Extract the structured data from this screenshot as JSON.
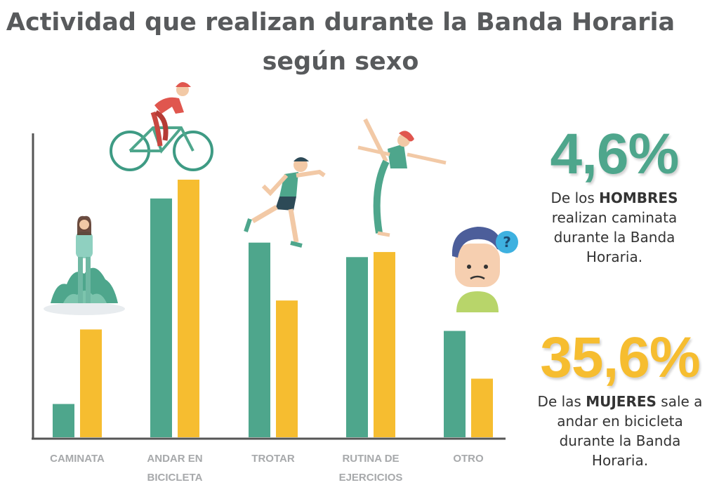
{
  "title": "Actividad que realizan durante la Banda Horaria según sexo",
  "colors": {
    "men": "#4ea68c",
    "women": "#f6bd30",
    "title": "#585a5c",
    "axis": "#555555"
  },
  "icons": [
    "woman-hiking-icon",
    "cyclist-icon",
    "runner-icon",
    "yoga-woman-icon",
    "confused-man-icon"
  ],
  "stats": {
    "men": {
      "value": "4,6%",
      "pre": "De los ",
      "bold": "HOMBRES",
      "post": " realizan caminata durante la Banda Horaria."
    },
    "women": {
      "value": "35,6%",
      "pre": "De las ",
      "bold": "MUJERES",
      "post": " sale a andar en bicicleta durante la Banda Horaria."
    }
  },
  "chart_data": {
    "type": "bar",
    "title": "Actividad que realizan durante la Banda Horaria según sexo",
    "categories": [
      "CAMINATA",
      "ANDAR EN BICICLETA",
      "TROTAR",
      "RUTINA DE EJERCICIOS",
      "OTRO"
    ],
    "category_lines": [
      [
        "CAMINATA"
      ],
      [
        "ANDAR EN",
        "BICICLETA"
      ],
      [
        "TROTAR"
      ],
      [
        "RUTINA DE",
        "EJERCICIOS"
      ],
      [
        "OTRO"
      ]
    ],
    "series": [
      {
        "color": "#4ea68c",
        "values": [
          4.6,
          33.0,
          26.9,
          24.9,
          14.7
        ]
      },
      {
        "color": "#f6bd30",
        "values": [
          14.9,
          35.6,
          18.9,
          25.6,
          8.1
        ]
      }
    ],
    "ylim": [
      0,
      42
    ],
    "grid": false,
    "legend": "none"
  }
}
